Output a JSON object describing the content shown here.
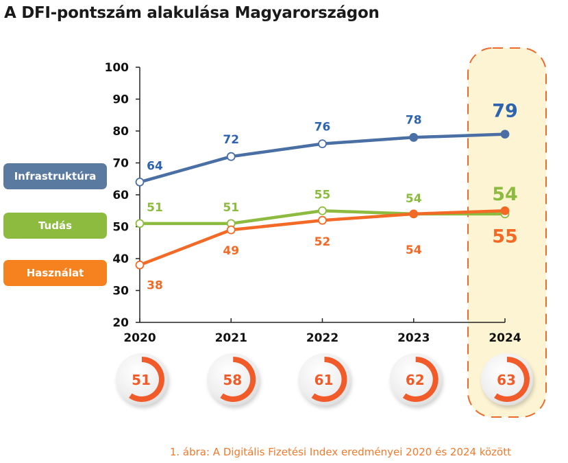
{
  "title": "A DFI-pontszám alakulása Magyarországon",
  "caption": "1. ábra: A Digitális Fizetési Index eredményei 2020 és 2024 között",
  "colors": {
    "infrastruktura": "#4a6fa5",
    "infrastruktura_label": "#2e63b0",
    "tudas": "#8cbb3f",
    "hasznalat": "#f26a26",
    "legend_infrastruktura": "#5b7aa0",
    "legend_tudas": "#8cbb3f",
    "legend_hasznalat": "#f5821f",
    "highlight_fill": "#fdf4d3",
    "highlight_border": "#ec6a2c",
    "donut": "#f15a29"
  },
  "legend": [
    {
      "label": "Infrastruktúra",
      "series": "infrastruktura"
    },
    {
      "label": "Tudás",
      "series": "tudas"
    },
    {
      "label": "Használat",
      "series": "hasznalat"
    }
  ],
  "chart_data": {
    "type": "line",
    "title": "A DFI-pontszám alakulása Magyarországon",
    "xlabel": "",
    "ylabel": "",
    "x": [
      "2020",
      "2021",
      "2022",
      "2023",
      "2024"
    ],
    "ylim": [
      20,
      100
    ],
    "yticks": [
      20,
      30,
      40,
      50,
      60,
      70,
      80,
      90,
      100
    ],
    "grid": false,
    "legend_placement": "left",
    "highlighted_category": "2024",
    "series": [
      {
        "name": "Infrastruktúra",
        "key": "infrastruktura",
        "values": [
          64,
          72,
          76,
          78,
          79
        ],
        "label_position": "above"
      },
      {
        "name": "Tudás",
        "key": "tudas",
        "values": [
          51,
          51,
          55,
          54,
          54
        ],
        "label_position": "above"
      },
      {
        "name": "Használat",
        "key": "hasznalat",
        "values": [
          38,
          49,
          52,
          54,
          55
        ],
        "label_position": "below"
      }
    ],
    "dfi_total": {
      "name": "DFI-pontszám",
      "values": [
        51,
        58,
        61,
        62,
        63
      ]
    }
  }
}
